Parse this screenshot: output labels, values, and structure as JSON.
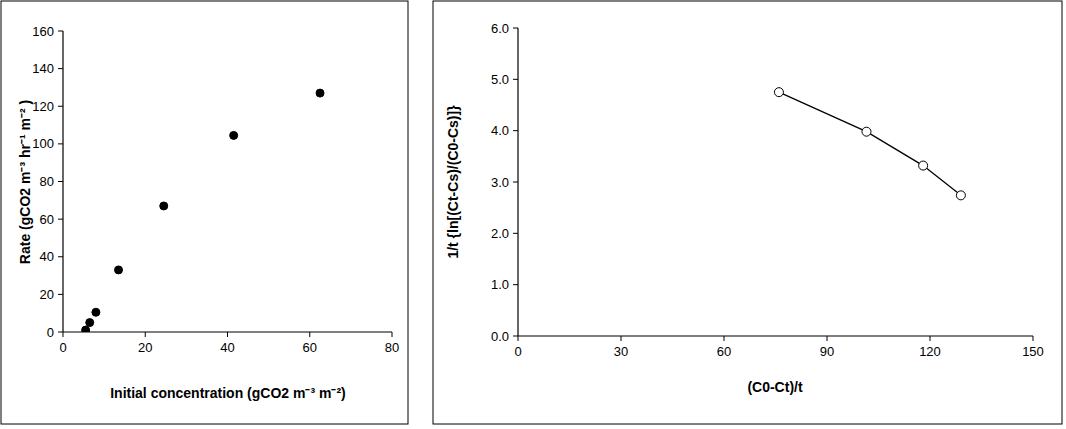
{
  "chart_data": [
    {
      "type": "scatter",
      "x_label": "Initial concentration (gCO2 m⁻³ m⁻²)",
      "y_label": "Rate (gCO2 m⁻³ hr⁻¹ m⁻² )",
      "x": [
        5.5,
        6.5,
        8,
        13.5,
        24.5,
        41.5,
        62.5
      ],
      "values": [
        1,
        5,
        10.5,
        33,
        67,
        104.5,
        127
      ],
      "marker": "circle",
      "color": "#000000",
      "xlim": [
        0,
        80
      ],
      "xticks": [
        0,
        20,
        40,
        60,
        80
      ],
      "ylim": [
        0,
        160
      ],
      "yticks": [
        0,
        20,
        40,
        60,
        80,
        100,
        120,
        140,
        160
      ],
      "grid": false
    },
    {
      "type": "line",
      "x_label": "(C0-Ct)/t",
      "y_label": "1/t {ln[(Ct-Cs)/(C0-Cs)]}",
      "x": [
        76,
        101.5,
        118,
        129
      ],
      "values": [
        4.75,
        3.98,
        3.32,
        2.74
      ],
      "marker": "circle-open",
      "line_style": "solid",
      "color": "#000000",
      "xlim": [
        0,
        150
      ],
      "xticks": [
        0,
        30,
        60,
        90,
        120,
        150
      ],
      "ylim": [
        0,
        6
      ],
      "yticks": [
        {
          "value": 0,
          "label": "0.0"
        },
        {
          "value": 1,
          "label": "1.0"
        },
        {
          "value": 2,
          "label": "2.0"
        },
        {
          "value": 3,
          "label": "3.0"
        },
        {
          "value": 4,
          "label": "4.0"
        },
        {
          "value": 5,
          "label": "5.0"
        },
        {
          "value": 6,
          "label": "6.0"
        }
      ],
      "grid": false
    }
  ]
}
